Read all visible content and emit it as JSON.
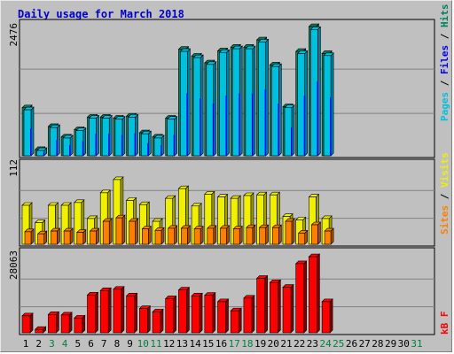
{
  "title": "Daily usage for March 2018",
  "colors": {
    "frame_bg": "#c0c0c0",
    "panel_bg": "#c0c0c0",
    "title": "#0000cc",
    "hits": "#008060",
    "files": "#0000ff",
    "pages": "#00c0e0",
    "visits": "#f0f000",
    "sites": "#ff8000",
    "kbytes": "#ff0000",
    "weekend_label": "#008040",
    "weekday_label": "#000000"
  },
  "legend": {
    "top": {
      "hits": "Hits",
      "sep1": "/",
      "files": "Files",
      "sep2": "/",
      "pages": "Pages"
    },
    "middle": {
      "visits": "Visits",
      "sep": "/",
      "sites": "Sites"
    },
    "bottom": {
      "kbytes": "kB F"
    }
  },
  "axis_max_labels": {
    "top": "2476",
    "middle": "112",
    "bottom": "28063"
  },
  "chart_data": {
    "type": "bar",
    "title": "Daily usage for March 2018",
    "categories": [
      "1",
      "2",
      "3",
      "4",
      "5",
      "6",
      "7",
      "8",
      "9",
      "10",
      "11",
      "12",
      "13",
      "14",
      "15",
      "16",
      "17",
      "18",
      "19",
      "20",
      "21",
      "22",
      "23",
      "24",
      "25",
      "26",
      "27",
      "28",
      "29",
      "30",
      "31"
    ],
    "weekend_days": [
      "3",
      "4",
      "10",
      "11",
      "17",
      "18",
      "24",
      "25",
      "31"
    ],
    "panels": [
      {
        "id": "top",
        "ymax": 2476,
        "series": [
          {
            "name": "Hits",
            "values": [
              920,
              120,
              560,
              360,
              500,
              740,
              740,
              720,
              760,
              440,
              360,
              720,
              2040,
              1910,
              1780,
              2010,
              2080,
              2080,
              2220,
              1740,
              940,
              2000,
              2476,
              1960,
              0,
              0,
              0,
              0,
              0,
              0,
              0
            ]
          },
          {
            "name": "Files",
            "values": [
              880,
              100,
              540,
              340,
              480,
              720,
              720,
              700,
              740,
              420,
              340,
              700,
              2000,
              1880,
              1750,
              1980,
              2050,
              2050,
              2180,
              1710,
              920,
              1960,
              2420,
              1920,
              0,
              0,
              0,
              0,
              0,
              0,
              0
            ]
          },
          {
            "name": "Pages",
            "values": [
              520,
              60,
              300,
              200,
              280,
              420,
              420,
              400,
              430,
              240,
              200,
              400,
              1200,
              1100,
              1000,
              1150,
              1190,
              1190,
              1270,
              1000,
              540,
              1150,
              1420,
              1120,
              0,
              0,
              0,
              0,
              0,
              0,
              0
            ]
          }
        ]
      },
      {
        "id": "middle",
        "ymax": 112,
        "series": [
          {
            "name": "Visits",
            "values": [
              56,
              31,
              56,
              56,
              60,
              37,
              74,
              93,
              63,
              57,
              33,
              66,
              80,
              55,
              72,
              68,
              66,
              70,
              71,
              71,
              40,
              35,
              68,
              37,
              0,
              0,
              0,
              0,
              0,
              0,
              0
            ]
          },
          {
            "name": "Sites",
            "values": [
              18,
              15,
              19,
              19,
              17,
              19,
              33,
              38,
              33,
              22,
              20,
              23,
              23,
              22,
              23,
              23,
              22,
              24,
              24,
              24,
              33,
              16,
              28,
              19,
              0,
              0,
              0,
              0,
              0,
              0,
              0
            ]
          }
        ]
      },
      {
        "id": "bottom",
        "ymax": 28063,
        "series": [
          {
            "name": "kB F",
            "values": [
              6100,
              1200,
              6600,
              6400,
              5300,
              13600,
              15200,
              15700,
              13300,
              8700,
              7500,
              12300,
              15400,
              13300,
              13500,
              11200,
              7900,
              12500,
              19600,
              18100,
              16400,
              24900,
              27400,
              11200,
              0,
              0,
              0,
              0,
              0,
              0,
              0
            ]
          }
        ]
      }
    ]
  }
}
